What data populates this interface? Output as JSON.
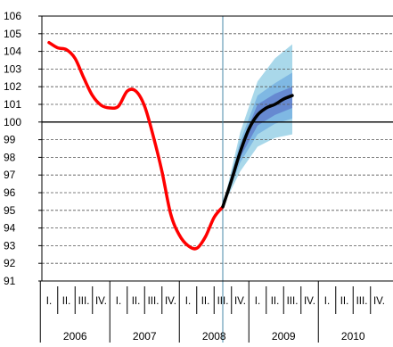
{
  "chart_data": {
    "type": "line",
    "title": "",
    "xlabel": "",
    "ylabel": "",
    "ylim": [
      91,
      106
    ],
    "yticks": [
      91,
      92,
      93,
      94,
      95,
      96,
      97,
      98,
      99,
      100,
      101,
      102,
      103,
      104,
      105,
      106
    ],
    "grid": true,
    "reference_line": 100,
    "quarter_labels": [
      "I.",
      "II.",
      "III.",
      "IV."
    ],
    "years": [
      "2006",
      "2007",
      "2008",
      "2009",
      "2010"
    ],
    "series": [
      {
        "kind": "actual",
        "color": "#ff0000",
        "points": [
          {
            "x": 0.0,
            "y": 104.5
          },
          {
            "x": 0.5,
            "y": 104.2
          },
          {
            "x": 1.0,
            "y": 104.1
          },
          {
            "x": 1.5,
            "y": 103.6
          },
          {
            "x": 2.0,
            "y": 102.5
          },
          {
            "x": 2.5,
            "y": 101.5
          },
          {
            "x": 3.0,
            "y": 100.95
          },
          {
            "x": 3.5,
            "y": 100.8
          },
          {
            "x": 4.0,
            "y": 100.9
          },
          {
            "x": 4.5,
            "y": 101.75
          },
          {
            "x": 5.0,
            "y": 101.75
          },
          {
            "x": 5.5,
            "y": 100.9
          },
          {
            "x": 6.0,
            "y": 99.2
          },
          {
            "x": 6.5,
            "y": 97.2
          },
          {
            "x": 7.0,
            "y": 94.8
          },
          {
            "x": 7.5,
            "y": 93.6
          },
          {
            "x": 8.0,
            "y": 93.0
          },
          {
            "x": 8.5,
            "y": 92.85
          },
          {
            "x": 9.0,
            "y": 93.5
          },
          {
            "x": 9.5,
            "y": 94.6
          },
          {
            "x": 10.0,
            "y": 95.2
          }
        ]
      },
      {
        "kind": "forecast",
        "color": "#000000",
        "points": [
          {
            "x": 10.0,
            "y": 95.2
          },
          {
            "x": 10.5,
            "y": 96.7
          },
          {
            "x": 11.0,
            "y": 98.3
          },
          {
            "x": 11.5,
            "y": 99.6
          },
          {
            "x": 12.0,
            "y": 100.4
          },
          {
            "x": 12.5,
            "y": 100.8
          },
          {
            "x": 13.0,
            "y": 101.0
          },
          {
            "x": 13.5,
            "y": 101.3
          },
          {
            "x": 14.0,
            "y": 101.5
          }
        ]
      }
    ],
    "fan_bands": [
      {
        "color": "#a9d8ea",
        "x": [
          10.0,
          11.0,
          12.0,
          13.0,
          14.0
        ],
        "lower": [
          95.2,
          97.2,
          98.6,
          99.1,
          99.3
        ],
        "upper": [
          95.2,
          99.4,
          102.3,
          103.6,
          104.4
        ]
      },
      {
        "color": "#7fb8e3",
        "x": [
          10.0,
          11.0,
          12.0,
          13.0,
          14.0
        ],
        "lower": [
          95.2,
          97.7,
          99.3,
          99.9,
          100.2
        ],
        "upper": [
          95.2,
          98.9,
          101.5,
          102.2,
          102.8
        ]
      },
      {
        "color": "#6689d1",
        "x": [
          10.0,
          11.0,
          12.0,
          13.0,
          14.0
        ],
        "lower": [
          95.2,
          98.0,
          99.8,
          100.4,
          100.8
        ],
        "upper": [
          95.2,
          98.6,
          101.0,
          101.6,
          102.0
        ]
      }
    ]
  }
}
